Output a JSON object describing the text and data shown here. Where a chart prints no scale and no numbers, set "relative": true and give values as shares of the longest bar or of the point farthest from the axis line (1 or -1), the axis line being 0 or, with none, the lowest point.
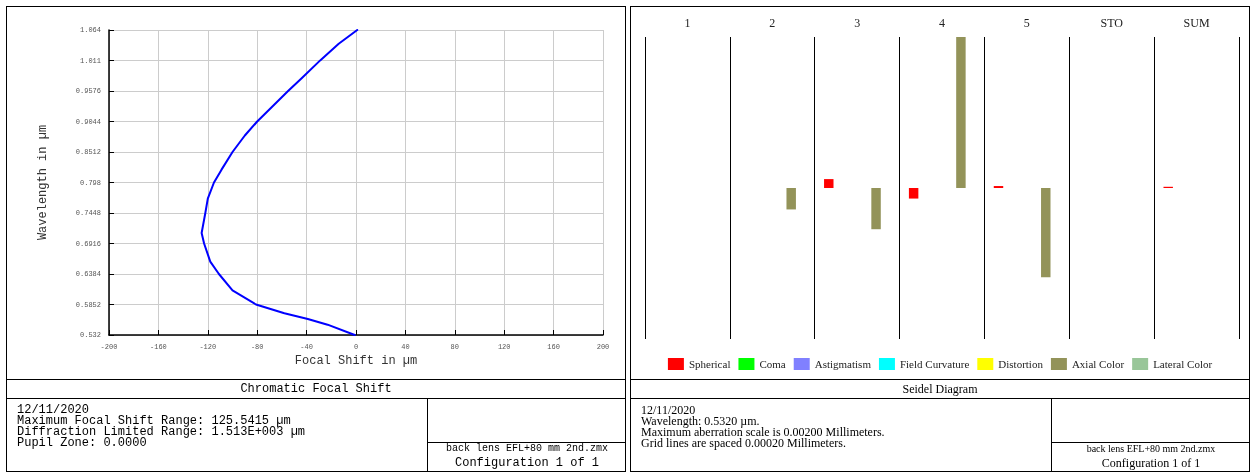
{
  "chart_data": [
    {
      "type": "line",
      "title": "Chromatic Focal Shift",
      "xlabel": "Focal Shift in µm",
      "ylabel": "Wavelength in µm",
      "x": [
        -1,
        -23,
        -39,
        -58,
        -81,
        -100,
        -111,
        -118,
        -123,
        -125,
        -122,
        -120,
        -115,
        -109,
        -100,
        -90,
        -80,
        -55,
        -44,
        -29,
        -14,
        1
      ],
      "values": [
        0.532,
        0.55,
        0.56,
        0.57,
        0.5852,
        0.61,
        0.6384,
        0.66,
        0.6916,
        0.71,
        0.7448,
        0.77,
        0.798,
        0.82,
        0.8512,
        0.88,
        0.9044,
        0.9576,
        0.98,
        1.011,
        1.04,
        1.064
      ],
      "color": "#0000ff",
      "marker": "none",
      "grid": true,
      "xlim": [
        -200,
        200
      ],
      "xticks": [
        -200,
        -160,
        -120,
        -80,
        -40,
        0,
        40,
        80,
        120,
        160,
        200
      ],
      "ylim": [
        0.532,
        1.064
      ],
      "yticks": [
        0.532,
        0.5852,
        0.6384,
        0.6916,
        0.7448,
        0.798,
        0.8512,
        0.9044,
        0.9576,
        {
          "value": 1.0108,
          "label": "1.011"
        },
        1.064
      ],
      "annotations": [
        "12/11/2020",
        "Maximum Focal Shift Range: 125.5415 µm",
        "Diffraction Limited Range: 1.513E+003 µm",
        "Pupil Zone: 0.0000",
        "back lens EFL+80 mm 2nd.zmx",
        "Configuration 1 of 1"
      ]
    },
    {
      "type": "bar",
      "title": "Seidel Diagram",
      "relative": true,
      "grid": "y",
      "legend": "bottom",
      "categories": [
        "1",
        "2",
        "3",
        "4",
        "5",
        "STO",
        "SUM"
      ],
      "series": [
        {
          "name": "Spherical",
          "color": "#ff0000",
          "values": [
            0,
            0,
            0.059,
            -0.07,
            0.013,
            0,
            0.008
          ]
        },
        {
          "name": "Coma",
          "color": "#00ff00",
          "values": [
            0,
            0,
            0,
            0,
            0,
            0,
            0
          ]
        },
        {
          "name": "Astigmatism",
          "color": "#8080ff",
          "values": [
            0,
            0,
            0,
            0,
            0,
            0,
            0
          ]
        },
        {
          "name": "Field Curvature",
          "color": "#00ffff",
          "values": [
            0,
            0,
            0,
            0,
            0,
            0,
            0
          ]
        },
        {
          "name": "Distortion",
          "color": "#ffff00",
          "values": [
            0,
            0,
            0,
            0,
            0,
            0,
            0
          ]
        },
        {
          "name": "Axial Color",
          "color": "#939359",
          "values": [
            0,
            -0.142,
            -0.273,
            1,
            -0.591,
            0,
            0
          ]
        },
        {
          "name": "Lateral Color",
          "color": "#99c699",
          "values": [
            0,
            0,
            0,
            0,
            0,
            0,
            0
          ]
        }
      ],
      "annotations": [
        "12/11/2020",
        "Wavelength: 0.5320 µm.",
        "Maximum aberration scale is 0.00200 Millimeters.",
        "Grid lines are spaced 0.00020 Millimeters.",
        "back lens EFL+80 mm 2nd.zmx",
        "Configuration 1 of 1"
      ]
    }
  ]
}
